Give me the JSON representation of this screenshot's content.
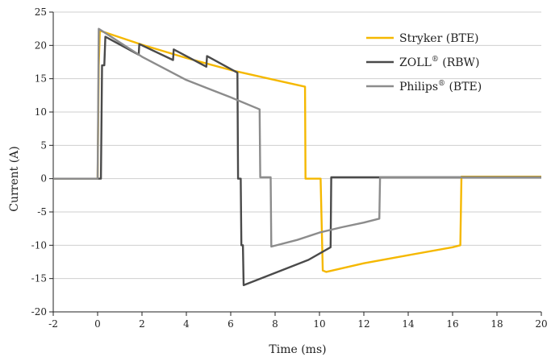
{
  "chart_data": {
    "type": "line",
    "title": "",
    "xlabel": "Time (ms)",
    "ylabel": "Current (A)",
    "xlim": [
      -2,
      20
    ],
    "ylim": [
      -20,
      25
    ],
    "x_ticks": [
      -2,
      0,
      2,
      4,
      6,
      8,
      10,
      12,
      14,
      16,
      18,
      20
    ],
    "y_ticks": [
      -20,
      -15,
      -10,
      -5,
      0,
      5,
      10,
      15,
      20,
      25
    ],
    "grid": "horizontal",
    "legend_position": "top-right",
    "series": [
      {
        "name": "Stryker (BTE)",
        "name_base": "Stryker",
        "name_sup": "",
        "name_rest": " (BTE)",
        "color": "#f5b800",
        "points": [
          [
            -2,
            0
          ],
          [
            0,
            0
          ],
          [
            0.05,
            17
          ],
          [
            0.1,
            22.2
          ],
          [
            2,
            20.1
          ],
          [
            4,
            18.1
          ],
          [
            6,
            16.3
          ],
          [
            8,
            14.8
          ],
          [
            9.35,
            13.8
          ],
          [
            9.37,
            0
          ],
          [
            10.05,
            0
          ],
          [
            10.15,
            -13.8
          ],
          [
            10.3,
            -14
          ],
          [
            12,
            -12.7
          ],
          [
            14,
            -11.5
          ],
          [
            16,
            -10.3
          ],
          [
            16.35,
            -10
          ],
          [
            16.4,
            0.3
          ],
          [
            20,
            0.3
          ]
        ]
      },
      {
        "name": "ZOLL® (RBW)",
        "name_base": "ZOLL",
        "name_sup": "®",
        "name_rest": " (RBW)",
        "color": "#4a4a4a",
        "points": [
          [
            -2,
            0
          ],
          [
            0,
            0
          ],
          [
            0.15,
            0
          ],
          [
            0.2,
            17
          ],
          [
            0.3,
            17
          ],
          [
            0.35,
            21.3
          ],
          [
            1.85,
            18.6
          ],
          [
            1.88,
            20.2
          ],
          [
            3.4,
            17.8
          ],
          [
            3.43,
            19.4
          ],
          [
            4.9,
            16.8
          ],
          [
            4.93,
            18.4
          ],
          [
            6.3,
            15.9
          ],
          [
            6.33,
            0
          ],
          [
            6.45,
            0
          ],
          [
            6.48,
            -10
          ],
          [
            6.55,
            -10
          ],
          [
            6.58,
            -16
          ],
          [
            7.5,
            -14.8
          ],
          [
            8.5,
            -13.5
          ],
          [
            9.5,
            -12.2
          ],
          [
            10.5,
            -10.3
          ],
          [
            10.53,
            0.2
          ],
          [
            20,
            0.2
          ]
        ]
      },
      {
        "name": "Philips® (BTE)",
        "name_base": "Philips",
        "name_sup": "®",
        "name_rest": " (BTE)",
        "color": "#8c8c8c",
        "points": [
          [
            -2,
            0
          ],
          [
            0,
            0
          ],
          [
            0.05,
            22.5
          ],
          [
            2,
            18.3
          ],
          [
            4,
            14.8
          ],
          [
            6,
            12.2
          ],
          [
            7.3,
            10.4
          ],
          [
            7.33,
            0.2
          ],
          [
            7.8,
            0.2
          ],
          [
            7.83,
            -10.2
          ],
          [
            9,
            -9.2
          ],
          [
            10,
            -8.1
          ],
          [
            11,
            -7.3
          ],
          [
            12,
            -6.6
          ],
          [
            12.7,
            -6
          ],
          [
            12.73,
            0.2
          ],
          [
            20,
            0.2
          ]
        ]
      }
    ]
  }
}
